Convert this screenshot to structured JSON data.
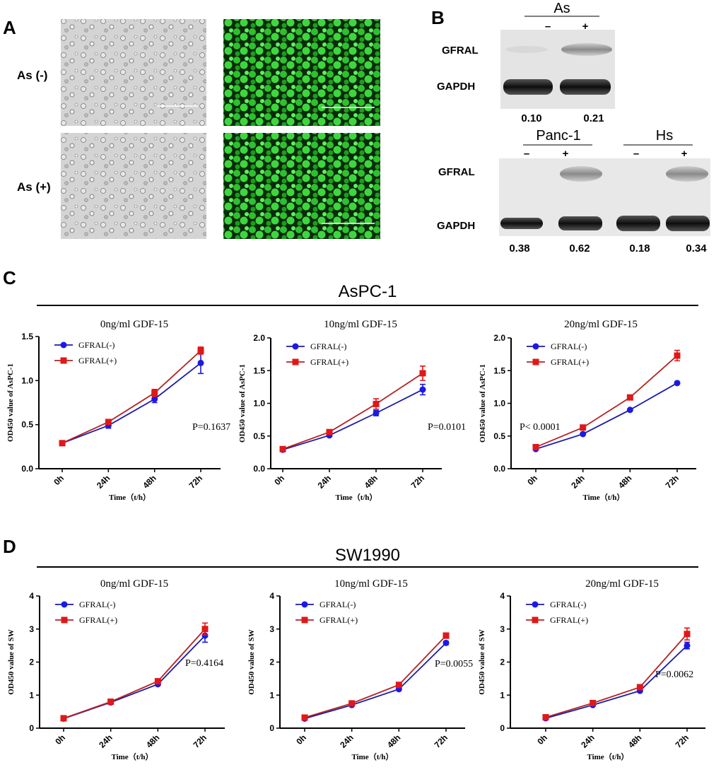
{
  "panels": {
    "a": "A",
    "b": "B",
    "c": "C",
    "d": "D"
  },
  "panel_a": {
    "rows": [
      "As (-)",
      "As (+)"
    ]
  },
  "panel_b": {
    "top": {
      "group": "As",
      "signs": [
        "–",
        "+"
      ],
      "bands": [
        "GFRAL",
        "GAPDH"
      ],
      "values": [
        "0.10",
        "0.21"
      ]
    },
    "bottom": {
      "groups": [
        "Panc-1",
        "Hs"
      ],
      "signs": [
        "–",
        "+",
        "–",
        "+"
      ],
      "bands": [
        "GFRAL",
        "GAPDH"
      ],
      "values": [
        "0.38",
        "0.62",
        "0.18",
        "0.34"
      ]
    }
  },
  "section_titles": {
    "c": "AsPC-1",
    "d": "SW1990"
  },
  "colors": {
    "neg": "#1a1aa8",
    "neg_marker": "#1a1ae6",
    "pos": "#b52222",
    "pos_marker": "#e01818"
  },
  "chart_data": [
    {
      "type": "line",
      "title": "0ng/ml GDF-15",
      "xlabel": "Time（t/h）",
      "ylabel": "OD450 value of AsPC-1",
      "categories": [
        "0h",
        "24h",
        "48h",
        "72h"
      ],
      "ylim": [
        0,
        1.5
      ],
      "yticks": [
        "0.0",
        "0.5",
        "1.0",
        "1.5"
      ],
      "legend": "top-left",
      "annotation": "P=0.1637",
      "series": [
        {
          "name": "GFRAL(-)",
          "values": [
            0.29,
            0.49,
            0.79,
            1.2
          ],
          "err": [
            0.01,
            0.03,
            0.04,
            0.12
          ]
        },
        {
          "name": "GFRAL(+)",
          "values": [
            0.29,
            0.53,
            0.86,
            1.34
          ],
          "err": [
            0.01,
            0.02,
            0.04,
            0.04
          ]
        }
      ]
    },
    {
      "type": "line",
      "title": "10ng/ml GDF-15",
      "xlabel": "Time（t/h）",
      "ylabel": "OD450 value of AsPC-1",
      "categories": [
        "0h",
        "24h",
        "48h",
        "72h"
      ],
      "ylim": [
        0,
        2.0
      ],
      "yticks": [
        "0.0",
        "0.5",
        "1.0",
        "1.5",
        "2.0"
      ],
      "legend": "top-left",
      "annotation": "P=0.0101",
      "series": [
        {
          "name": "GFRAL(-)",
          "values": [
            0.29,
            0.51,
            0.85,
            1.21
          ],
          "err": [
            0.01,
            0.02,
            0.04,
            0.08
          ]
        },
        {
          "name": "GFRAL(+)",
          "values": [
            0.3,
            0.56,
            0.99,
            1.46
          ],
          "err": [
            0.02,
            0.02,
            0.08,
            0.11
          ]
        }
      ]
    },
    {
      "type": "line",
      "title": "20ng/ml GDF-15",
      "xlabel": "Time（t/h）",
      "ylabel": "OD450 value of AsPC-1",
      "categories": [
        "0h",
        "24h",
        "48h",
        "72h"
      ],
      "ylim": [
        0,
        2.0
      ],
      "yticks": [
        "0.0",
        "0.5",
        "1.0",
        "1.5",
        "2.0"
      ],
      "legend": "top-left",
      "annotation": "P< 0.0001",
      "series": [
        {
          "name": "GFRAL(-)",
          "values": [
            0.3,
            0.53,
            0.9,
            1.31
          ],
          "err": [
            0.01,
            0.01,
            0.01,
            0.01
          ]
        },
        {
          "name": "GFRAL(+)",
          "values": [
            0.33,
            0.63,
            1.09,
            1.73
          ],
          "err": [
            0.01,
            0.02,
            0.02,
            0.08
          ]
        }
      ]
    },
    {
      "type": "line",
      "title": "0ng/ml GDF-15",
      "xlabel": "Time（t/h）",
      "ylabel": "OD450 value of SW",
      "categories": [
        "0h",
        "24h",
        "48h",
        "72h"
      ],
      "ylim": [
        0,
        4
      ],
      "yticks": [
        "0",
        "1",
        "2",
        "3",
        "4"
      ],
      "legend": "top-left",
      "annotation": "P=0.4164",
      "series": [
        {
          "name": "GFRAL(-)",
          "values": [
            0.29,
            0.78,
            1.33,
            2.8
          ],
          "err": [
            0.02,
            0.03,
            0.04,
            0.2
          ]
        },
        {
          "name": "GFRAL(+)",
          "values": [
            0.3,
            0.8,
            1.42,
            3.0
          ],
          "err": [
            0.02,
            0.03,
            0.04,
            0.18
          ]
        }
      ]
    },
    {
      "type": "line",
      "title": "10ng/ml GDF-15",
      "xlabel": "Time（t/h）",
      "ylabel": "OD450 value of SW",
      "categories": [
        "0h",
        "24h",
        "48h",
        "72h"
      ],
      "ylim": [
        0,
        4
      ],
      "yticks": [
        "0",
        "1",
        "2",
        "3",
        "4"
      ],
      "legend": "top-left",
      "annotation": "P=0.0055",
      "series": [
        {
          "name": "GFRAL(-)",
          "values": [
            0.29,
            0.7,
            1.18,
            2.58
          ],
          "err": [
            0.02,
            0.02,
            0.03,
            0.05
          ]
        },
        {
          "name": "GFRAL(+)",
          "values": [
            0.32,
            0.75,
            1.31,
            2.8
          ],
          "err": [
            0.02,
            0.03,
            0.03,
            0.08
          ]
        }
      ]
    },
    {
      "type": "line",
      "title": "20ng/ml GDF-15",
      "xlabel": "Time（t/h）",
      "ylabel": "OD450 value of SW",
      "categories": [
        "0h",
        "24h",
        "48h",
        "72h"
      ],
      "ylim": [
        0,
        4
      ],
      "yticks": [
        "0",
        "1",
        "2",
        "3",
        "4"
      ],
      "legend": "top-left",
      "annotation": "P=0.0062",
      "series": [
        {
          "name": "GFRAL(-)",
          "values": [
            0.3,
            0.7,
            1.13,
            2.5
          ],
          "err": [
            0.02,
            0.02,
            0.03,
            0.1
          ]
        },
        {
          "name": "GFRAL(+)",
          "values": [
            0.33,
            0.76,
            1.24,
            2.85
          ],
          "err": [
            0.02,
            0.03,
            0.04,
            0.18
          ]
        }
      ]
    }
  ]
}
